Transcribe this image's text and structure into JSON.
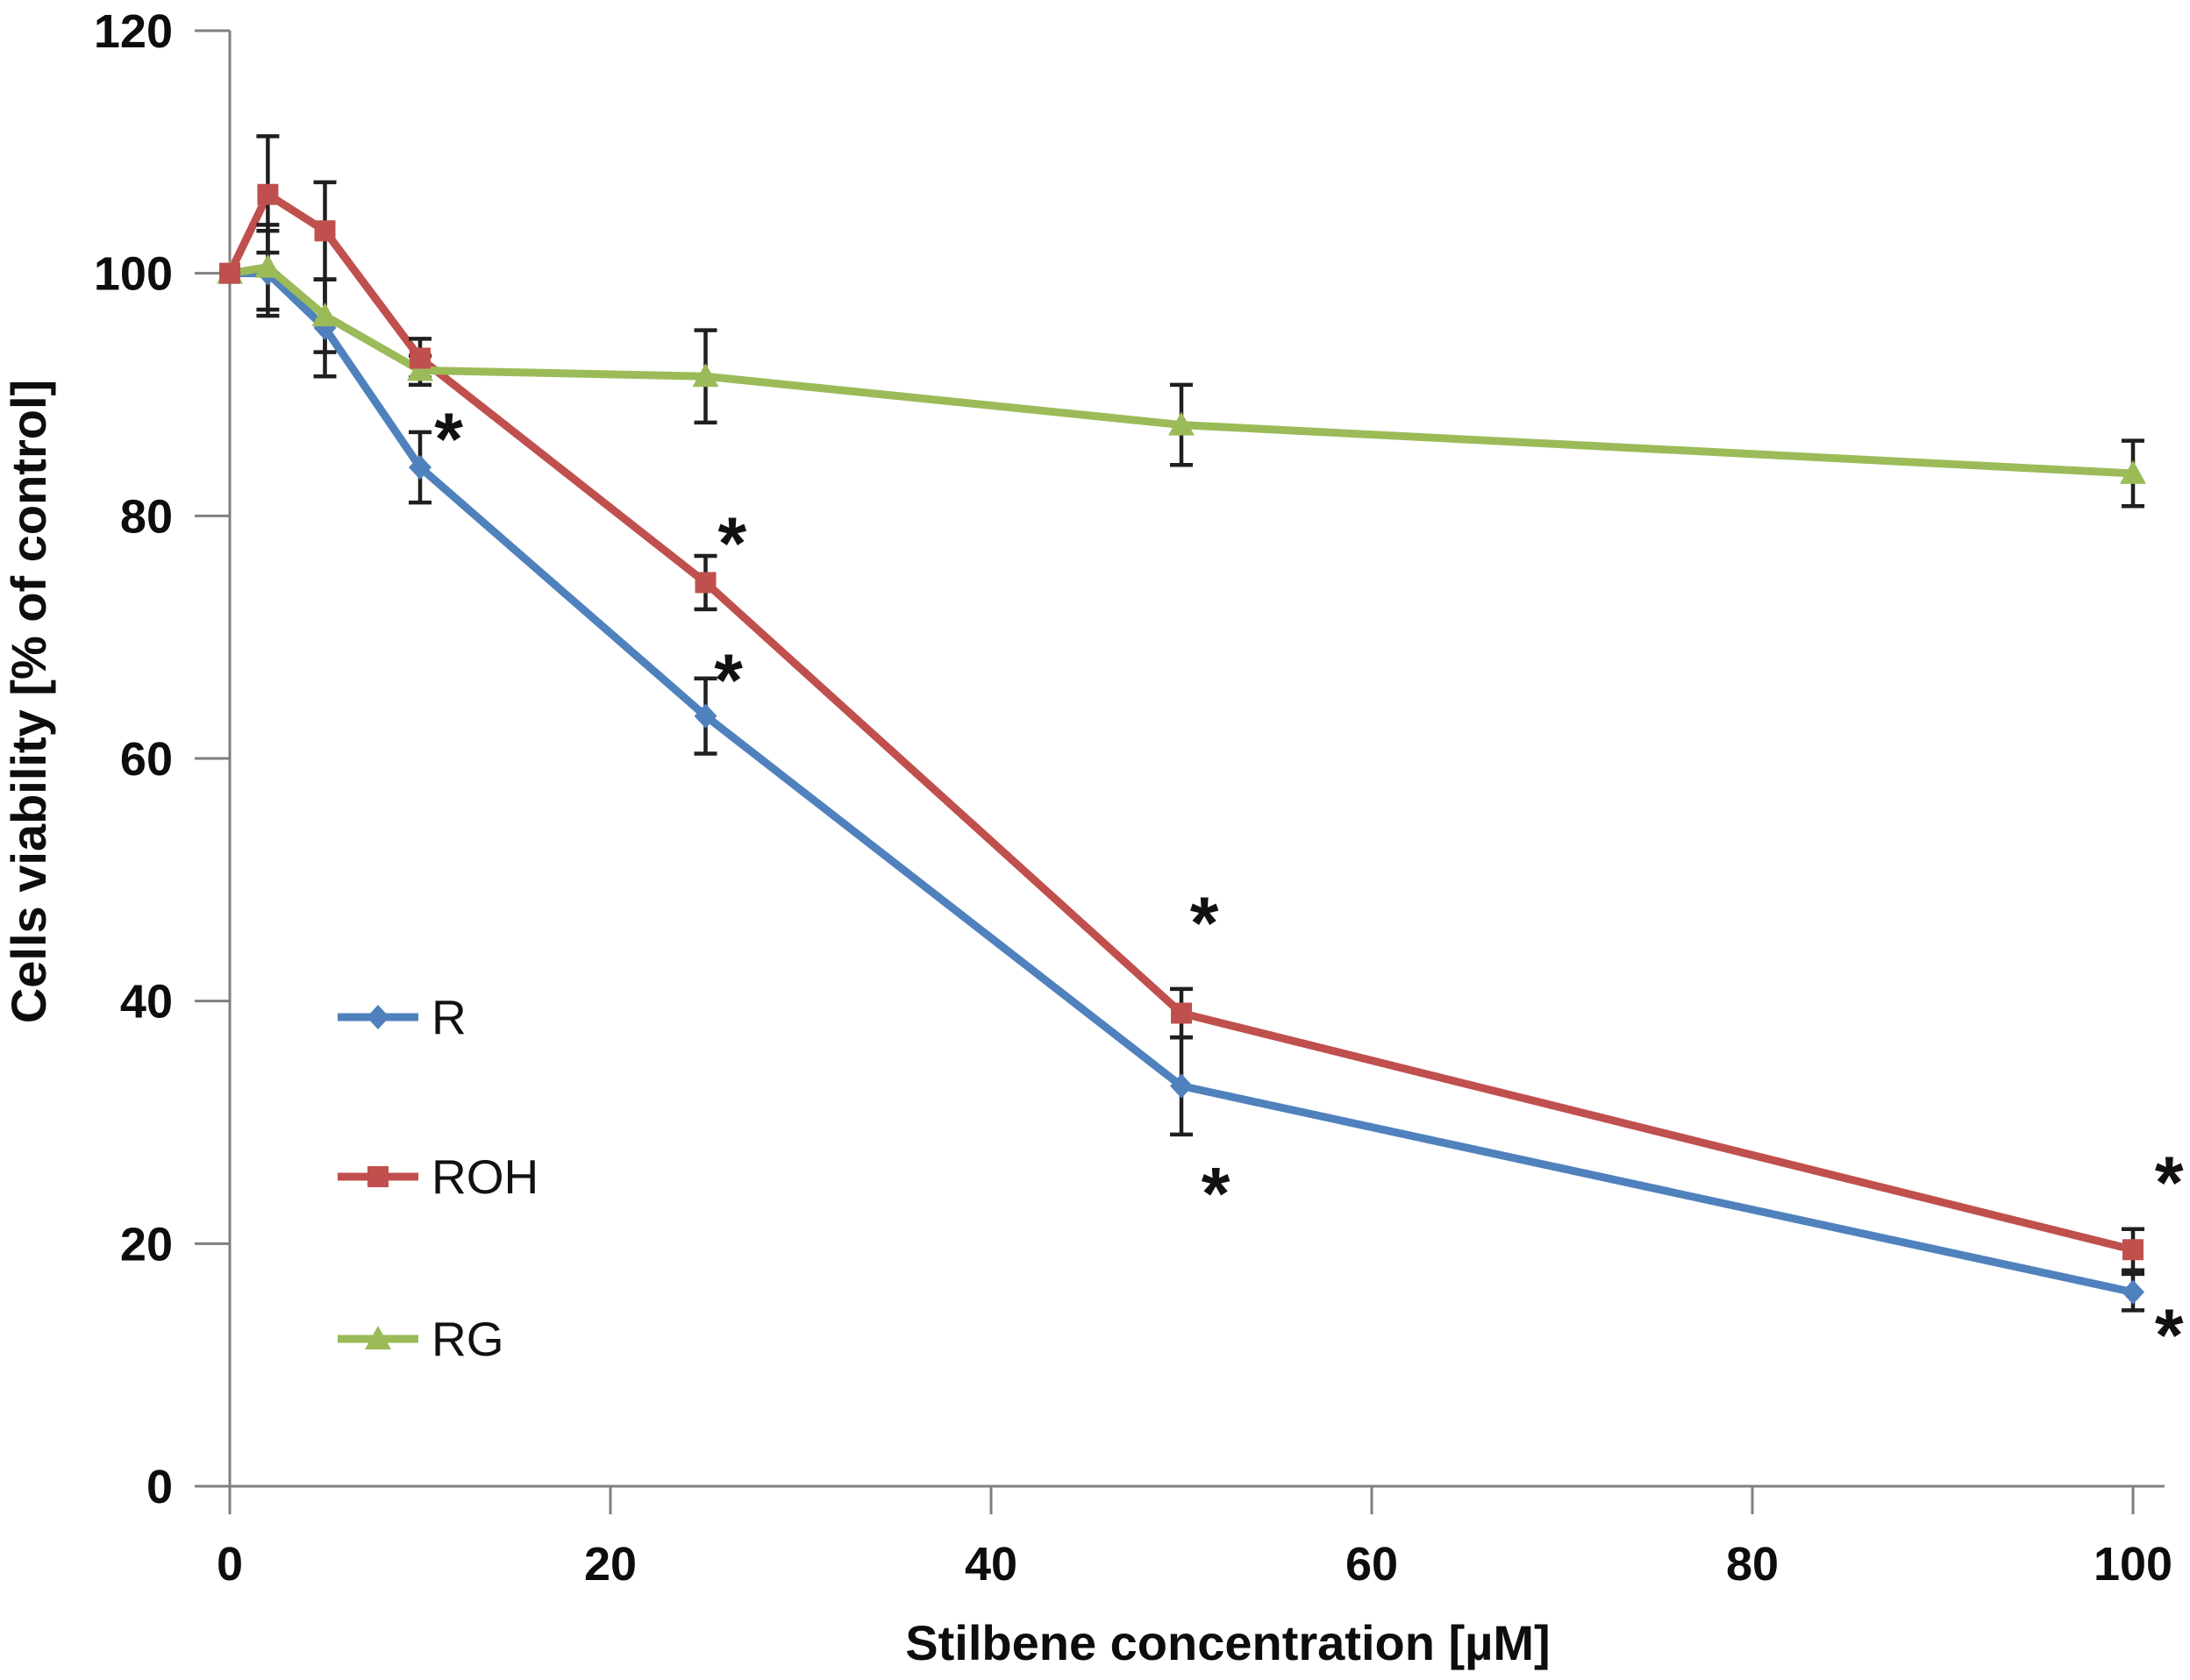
{
  "chart_data": {
    "type": "line",
    "title": "",
    "xlabel": "Stilbene concentration [µM]",
    "ylabel": "Cells viability [% of control]",
    "x": [
      0,
      2,
      5,
      10,
      25,
      50,
      100
    ],
    "x_ticks": [
      0,
      20,
      40,
      60,
      80,
      100
    ],
    "y_ticks": [
      0,
      20,
      40,
      60,
      80,
      100,
      120
    ],
    "xlim": [
      0,
      100
    ],
    "ylim": [
      0,
      120
    ],
    "grid": false,
    "background": "#ffffff",
    "axis_color": "#7f7f7f",
    "error_bar_color": "#1f1f1f",
    "legend_position": "inside-left",
    "series": [
      {
        "name": "R",
        "color": "#4f81bd",
        "marker": "diamond",
        "values": [
          100,
          100,
          95.5,
          84,
          63.5,
          33,
          16
        ],
        "errors": [
          0,
          3.5,
          4,
          2.9,
          3.1,
          4,
          1.5
        ]
      },
      {
        "name": "ROH",
        "color": "#c0504d",
        "marker": "square",
        "values": [
          100,
          106.5,
          103.5,
          93,
          74.5,
          39,
          19.5
        ],
        "errors": [
          0,
          4.8,
          4,
          1.6,
          2.2,
          2,
          1.7
        ]
      },
      {
        "name": "RG",
        "color": "#9bbb59",
        "marker": "triangle",
        "values": [
          100,
          100.5,
          96.5,
          92,
          91.5,
          87.5,
          83.5
        ],
        "errors": [
          0,
          3.5,
          3,
          1.2,
          3.8,
          3.3,
          2.7
        ]
      }
    ],
    "annotations": [
      {
        "text": "*",
        "x": 11.5,
        "y": 87.3
      },
      {
        "text": "*",
        "x": 26.4,
        "y": 78.7
      },
      {
        "text": "*",
        "x": 26.2,
        "y": 67.4
      },
      {
        "text": "*",
        "x": 51.2,
        "y": 47.4
      },
      {
        "text": "*",
        "x": 51.8,
        "y": 25.1
      },
      {
        "text": "*",
        "x": 101.9,
        "y": 26.0
      },
      {
        "text": "*",
        "x": 101.9,
        "y": 13.4
      }
    ]
  }
}
